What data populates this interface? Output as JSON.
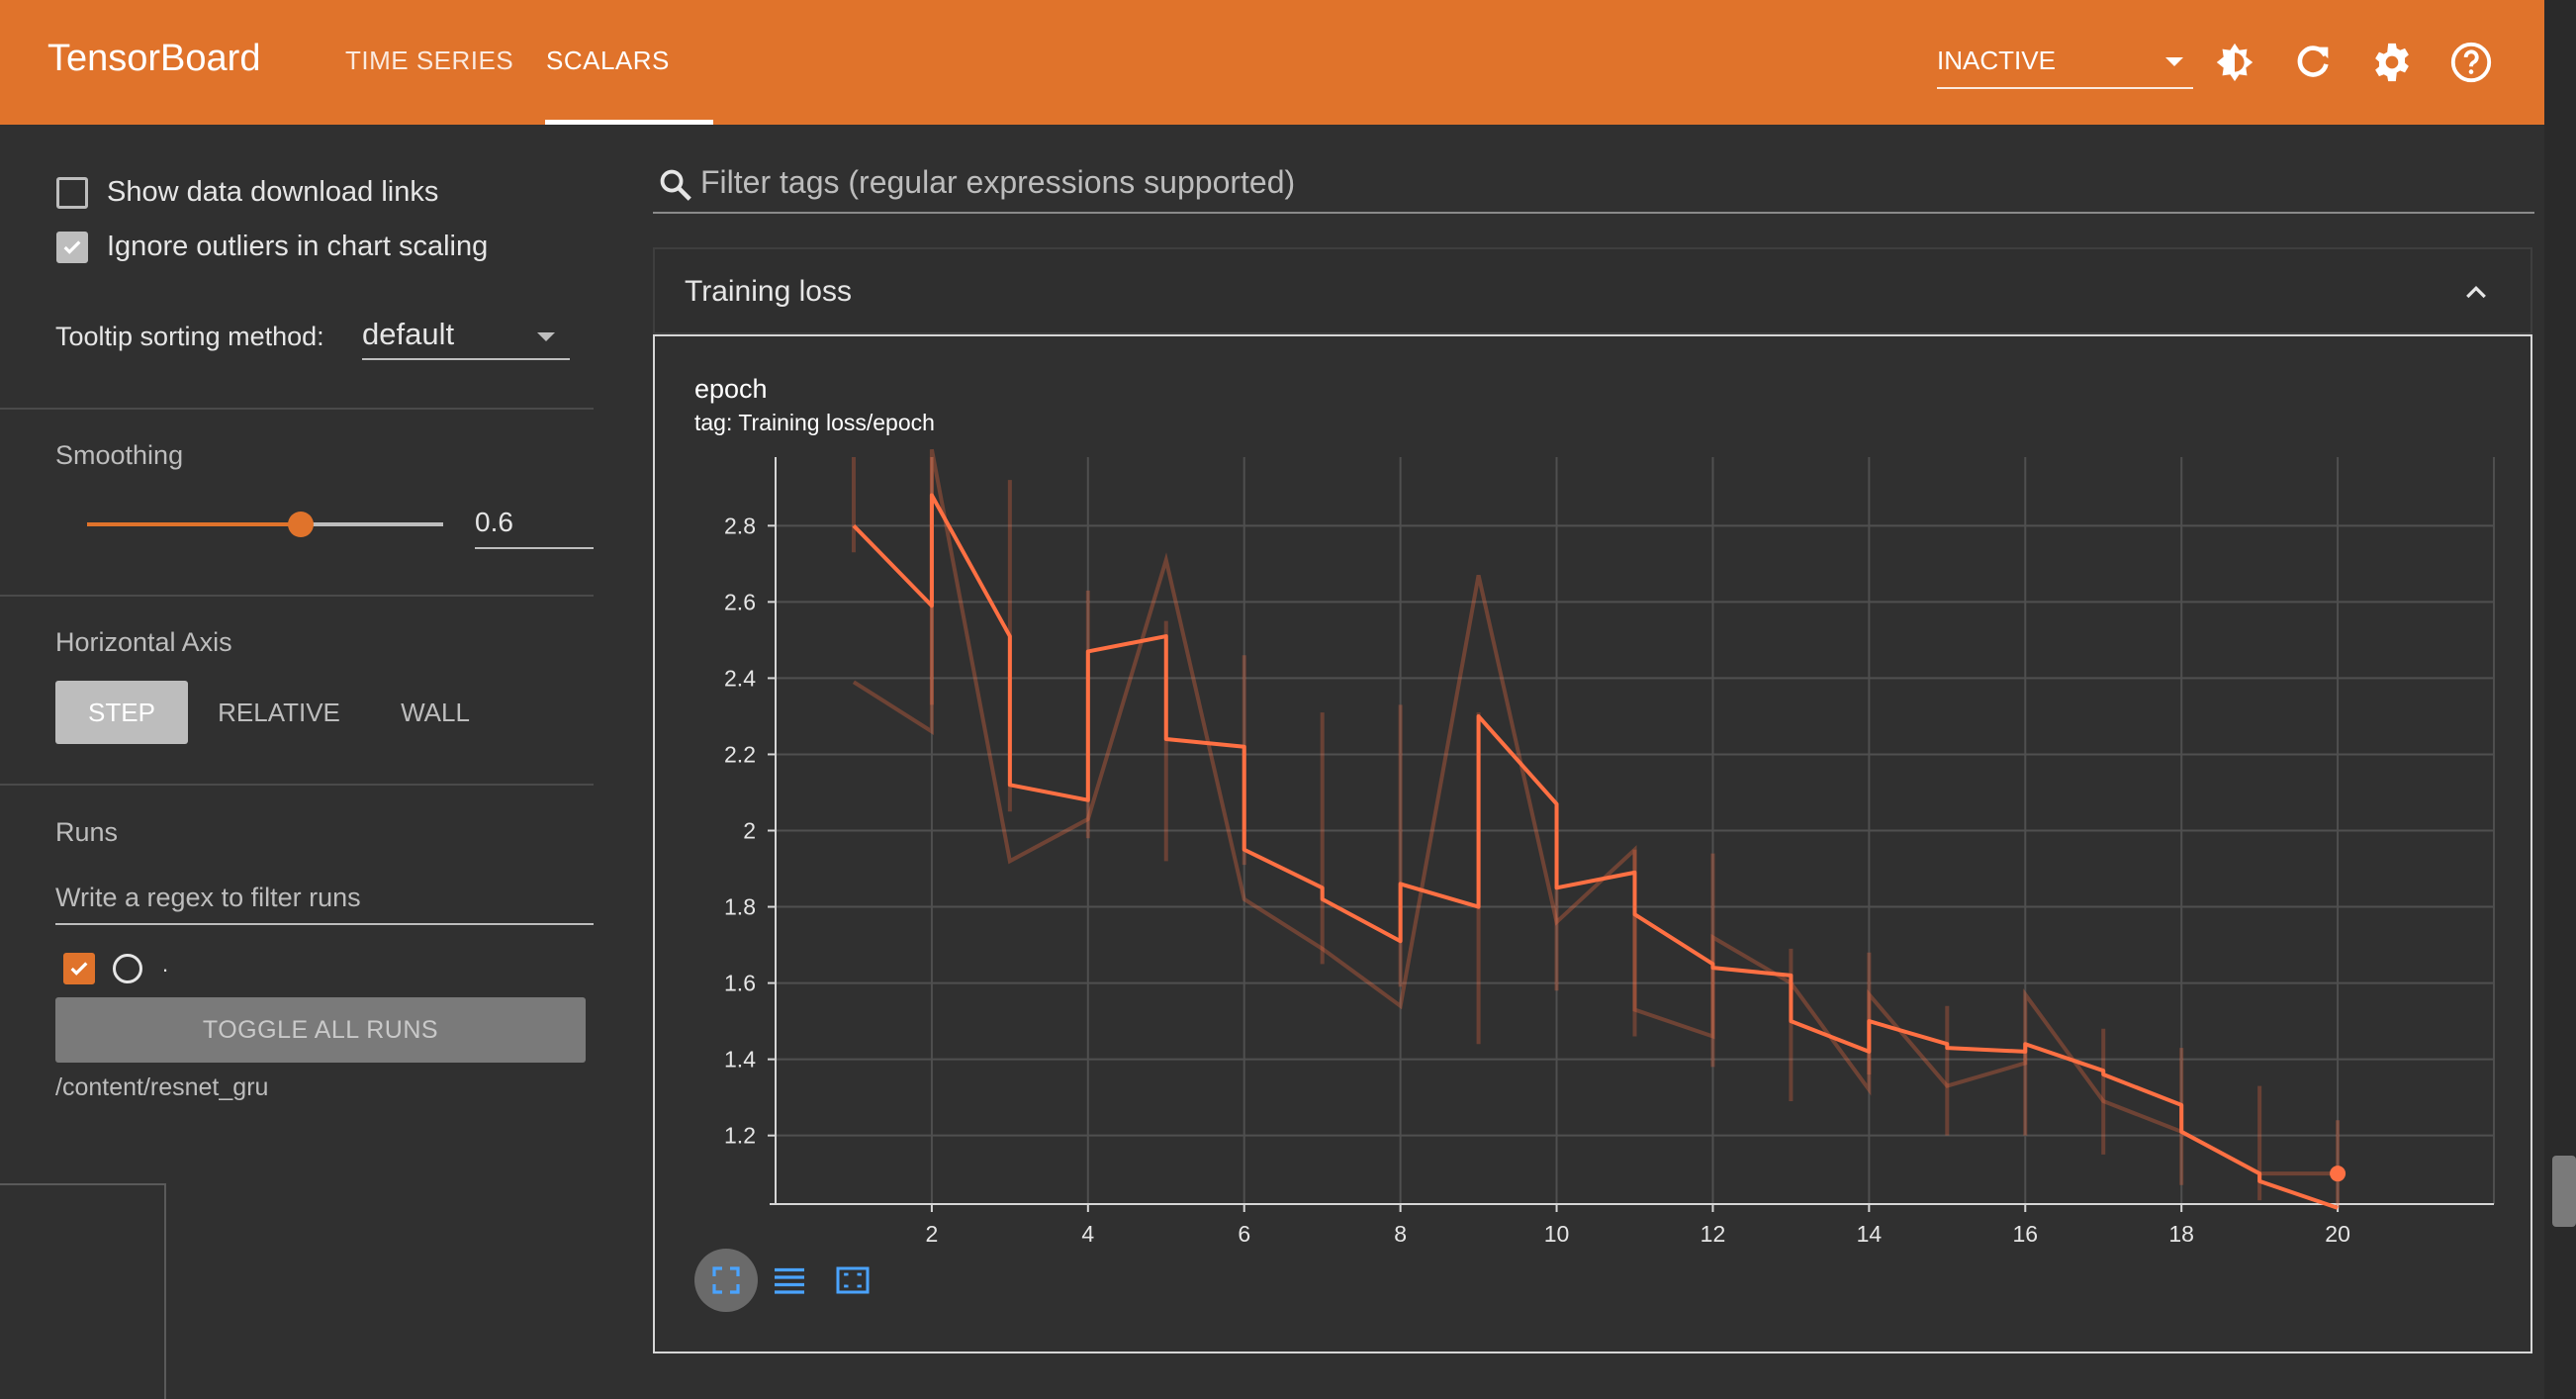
{
  "header": {
    "brand": "TensorBoard",
    "tabs": [
      {
        "label": "TIME SERIES",
        "active": false
      },
      {
        "label": "SCALARS",
        "active": true
      }
    ],
    "status_select": "INACTIVE",
    "icons": [
      "brightness-icon",
      "refresh-icon",
      "settings-gear-icon",
      "help-icon"
    ]
  },
  "sidebar": {
    "show_download_links": {
      "label": "Show data download links",
      "checked": false
    },
    "ignore_outliers": {
      "label": "Ignore outliers in chart scaling",
      "checked": true
    },
    "tooltip_sorting": {
      "label": "Tooltip sorting method:",
      "value": "default"
    },
    "smoothing": {
      "label": "Smoothing",
      "value": "0.6",
      "level": 0.6
    },
    "horizontal_axis": {
      "label": "Horizontal Axis",
      "options": [
        "STEP",
        "RELATIVE",
        "WALL"
      ],
      "selected": "STEP"
    },
    "runs": {
      "label": "Runs",
      "filter_placeholder": "Write a regex to filter runs",
      "run_name": ".",
      "run_checked": true,
      "toggle_all_label": "TOGGLE ALL RUNS",
      "logdir": "/content/resnet_gru"
    }
  },
  "main": {
    "filter_placeholder": "Filter tags (regular expressions supported)",
    "card_title": "Training loss",
    "chart_title": "epoch",
    "chart_subtitle": "tag: Training loss/epoch"
  },
  "colors": {
    "header_bg": "#e0732b",
    "series": "#ff7043",
    "accent": "#e0732b",
    "background": "#303030"
  },
  "chart_data": {
    "type": "line",
    "title": "epoch",
    "subtitle": "tag: Training loss/epoch",
    "xlabel": "",
    "ylabel": "",
    "xlim": [
      0,
      22
    ],
    "ylim": [
      1.02,
      2.98
    ],
    "x_ticks": [
      "2",
      "4",
      "6",
      "8",
      "10",
      "12",
      "14",
      "16",
      "18",
      "20"
    ],
    "y_ticks": [
      "1.2",
      "1.4",
      "1.6",
      "1.8",
      "2",
      "2.2",
      "2.4",
      "2.6",
      "2.8"
    ],
    "grid": true,
    "smoothed_series": [
      [
        1,
        2.8
      ],
      [
        2,
        2.59
      ],
      [
        2,
        2.88
      ],
      [
        3,
        2.51
      ],
      [
        3,
        2.12
      ],
      [
        4,
        2.08
      ],
      [
        4,
        2.47
      ],
      [
        5,
        2.51
      ],
      [
        5,
        2.24
      ],
      [
        6,
        2.22
      ],
      [
        6,
        1.95
      ],
      [
        7,
        1.85
      ],
      [
        7,
        1.82
      ],
      [
        8,
        1.71
      ],
      [
        8,
        1.86
      ],
      [
        9,
        1.8
      ],
      [
        9,
        2.3
      ],
      [
        10,
        2.07
      ],
      [
        10,
        1.85
      ],
      [
        11,
        1.89
      ],
      [
        11,
        1.78
      ],
      [
        12,
        1.65
      ],
      [
        12,
        1.64
      ],
      [
        13,
        1.62
      ],
      [
        13,
        1.5
      ],
      [
        14,
        1.42
      ],
      [
        14,
        1.5
      ],
      [
        15,
        1.44
      ],
      [
        15,
        1.43
      ],
      [
        16,
        1.42
      ],
      [
        16,
        1.44
      ],
      [
        17,
        1.37
      ],
      [
        17,
        1.36
      ],
      [
        18,
        1.28
      ],
      [
        18,
        1.21
      ],
      [
        19,
        1.1
      ],
      [
        19,
        1.08
      ],
      [
        20,
        1.01
      ]
    ],
    "raw_series": [
      [
        1,
        2.39
      ],
      [
        2,
        2.26
      ],
      [
        2,
        3.0
      ],
      [
        3,
        1.92
      ],
      [
        4,
        2.03
      ],
      [
        5,
        2.71
      ],
      [
        6,
        1.82
      ],
      [
        7,
        1.69
      ],
      [
        8,
        1.54
      ],
      [
        9,
        2.67
      ],
      [
        10,
        1.76
      ],
      [
        11,
        1.95
      ],
      [
        11,
        1.53
      ],
      [
        12,
        1.46
      ],
      [
        12,
        1.72
      ],
      [
        13,
        1.6
      ],
      [
        14,
        1.32
      ],
      [
        14,
        1.57
      ],
      [
        15,
        1.33
      ],
      [
        16,
        1.39
      ],
      [
        16,
        1.57
      ],
      [
        17,
        1.29
      ],
      [
        18,
        1.21
      ],
      [
        19,
        1.1
      ],
      [
        20,
        1.1
      ]
    ],
    "ranges": [
      [
        1,
        2.73,
        2.98
      ],
      [
        2,
        2.33,
        2.98
      ],
      [
        3,
        2.05,
        2.92
      ],
      [
        4,
        1.98,
        2.63
      ],
      [
        5,
        1.92,
        2.55
      ],
      [
        6,
        1.91,
        2.46
      ],
      [
        7,
        1.65,
        2.31
      ],
      [
        8,
        1.59,
        2.33
      ],
      [
        9,
        1.44,
        2.31
      ],
      [
        10,
        1.58,
        2.07
      ],
      [
        11,
        1.46,
        1.95
      ],
      [
        12,
        1.38,
        1.94
      ],
      [
        13,
        1.29,
        1.69
      ],
      [
        14,
        1.36,
        1.68
      ],
      [
        15,
        1.2,
        1.54
      ],
      [
        16,
        1.2,
        1.44
      ],
      [
        17,
        1.15,
        1.48
      ],
      [
        18,
        1.07,
        1.43
      ],
      [
        19,
        1.03,
        1.33
      ],
      [
        20,
        1.01,
        1.24
      ]
    ],
    "current_point": [
      20,
      1.1
    ]
  }
}
